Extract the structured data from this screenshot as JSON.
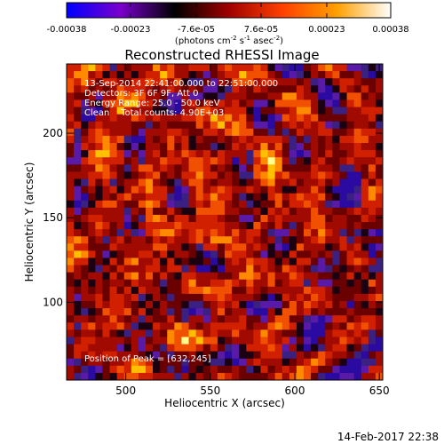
{
  "colorbar": {
    "tick_labels": [
      "-0.00038",
      "-0.00023",
      "-7.6e-05",
      "7.6e-05",
      "0.00023",
      "0.00038"
    ],
    "tick_values": [
      -0.00038,
      -0.00023,
      -7.6e-05,
      7.6e-05,
      0.00023,
      0.00038
    ],
    "units": "(photons cm",
    "units_exp1": "-2",
    "units_mid": " s",
    "units_exp2": "-1",
    "units_end": " asec",
    "units_exp3": "-2",
    "units_close": ")",
    "range": [
      -0.00038,
      0.00038
    ],
    "colormap_stops": [
      "#0000ff",
      "#7a00cc",
      "#000000",
      "#a00000",
      "#ff4000",
      "#ffa000",
      "#ffffff"
    ]
  },
  "chart_data": {
    "type": "heatmap",
    "title": "Reconstructed RHESSI Image",
    "xlabel": "Heliocentric X (arcsec)",
    "ylabel": "Heliocentric Y (arcsec)",
    "xlim": [
      465,
      652
    ],
    "ylim": [
      54,
      241
    ],
    "x_ticks": [
      500,
      550,
      600,
      650
    ],
    "y_ticks": [
      100,
      150,
      200
    ],
    "x_tick_labels": [
      "500",
      "550",
      "600",
      "650"
    ],
    "y_tick_labels": [
      "100",
      "150",
      "200"
    ],
    "grid_size": 44,
    "grid": false
  },
  "annotations": {
    "time": "13-Sep-2014 22:41:00.000 to 22:51:00.000",
    "detectors": "Detectors: 3F 6F 9F, Att 0",
    "energy": "Energy Range: 25.0 - 50.0 keV",
    "clean": "Clean    Total counts: 4.90E+03",
    "peak": "Position of Peak = [632,245]"
  },
  "footer": {
    "timestamp": "14-Feb-2017 22:38"
  }
}
